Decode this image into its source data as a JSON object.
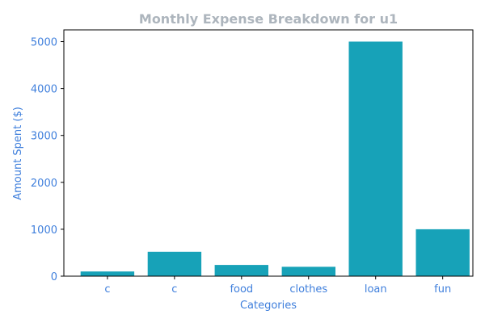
{
  "chart_data": {
    "type": "bar",
    "title": "Monthly Expense Breakdown for u1",
    "xlabel": "Categories",
    "ylabel": "Amount Spent ($)",
    "categories": [
      "c",
      "c",
      "food",
      "clothes",
      "loan",
      "fun"
    ],
    "values": [
      100,
      520,
      240,
      200,
      5000,
      1000
    ],
    "ylim": [
      0,
      5250
    ],
    "yticks": [
      0,
      1000,
      2000,
      3000,
      4000,
      5000
    ],
    "grid": false,
    "legend": "none"
  },
  "colors": {
    "bar": "#17a2b8",
    "title": "#adb5bd",
    "labels": "#3f7fdc",
    "axes": "#000000",
    "background": "#ffffff"
  }
}
